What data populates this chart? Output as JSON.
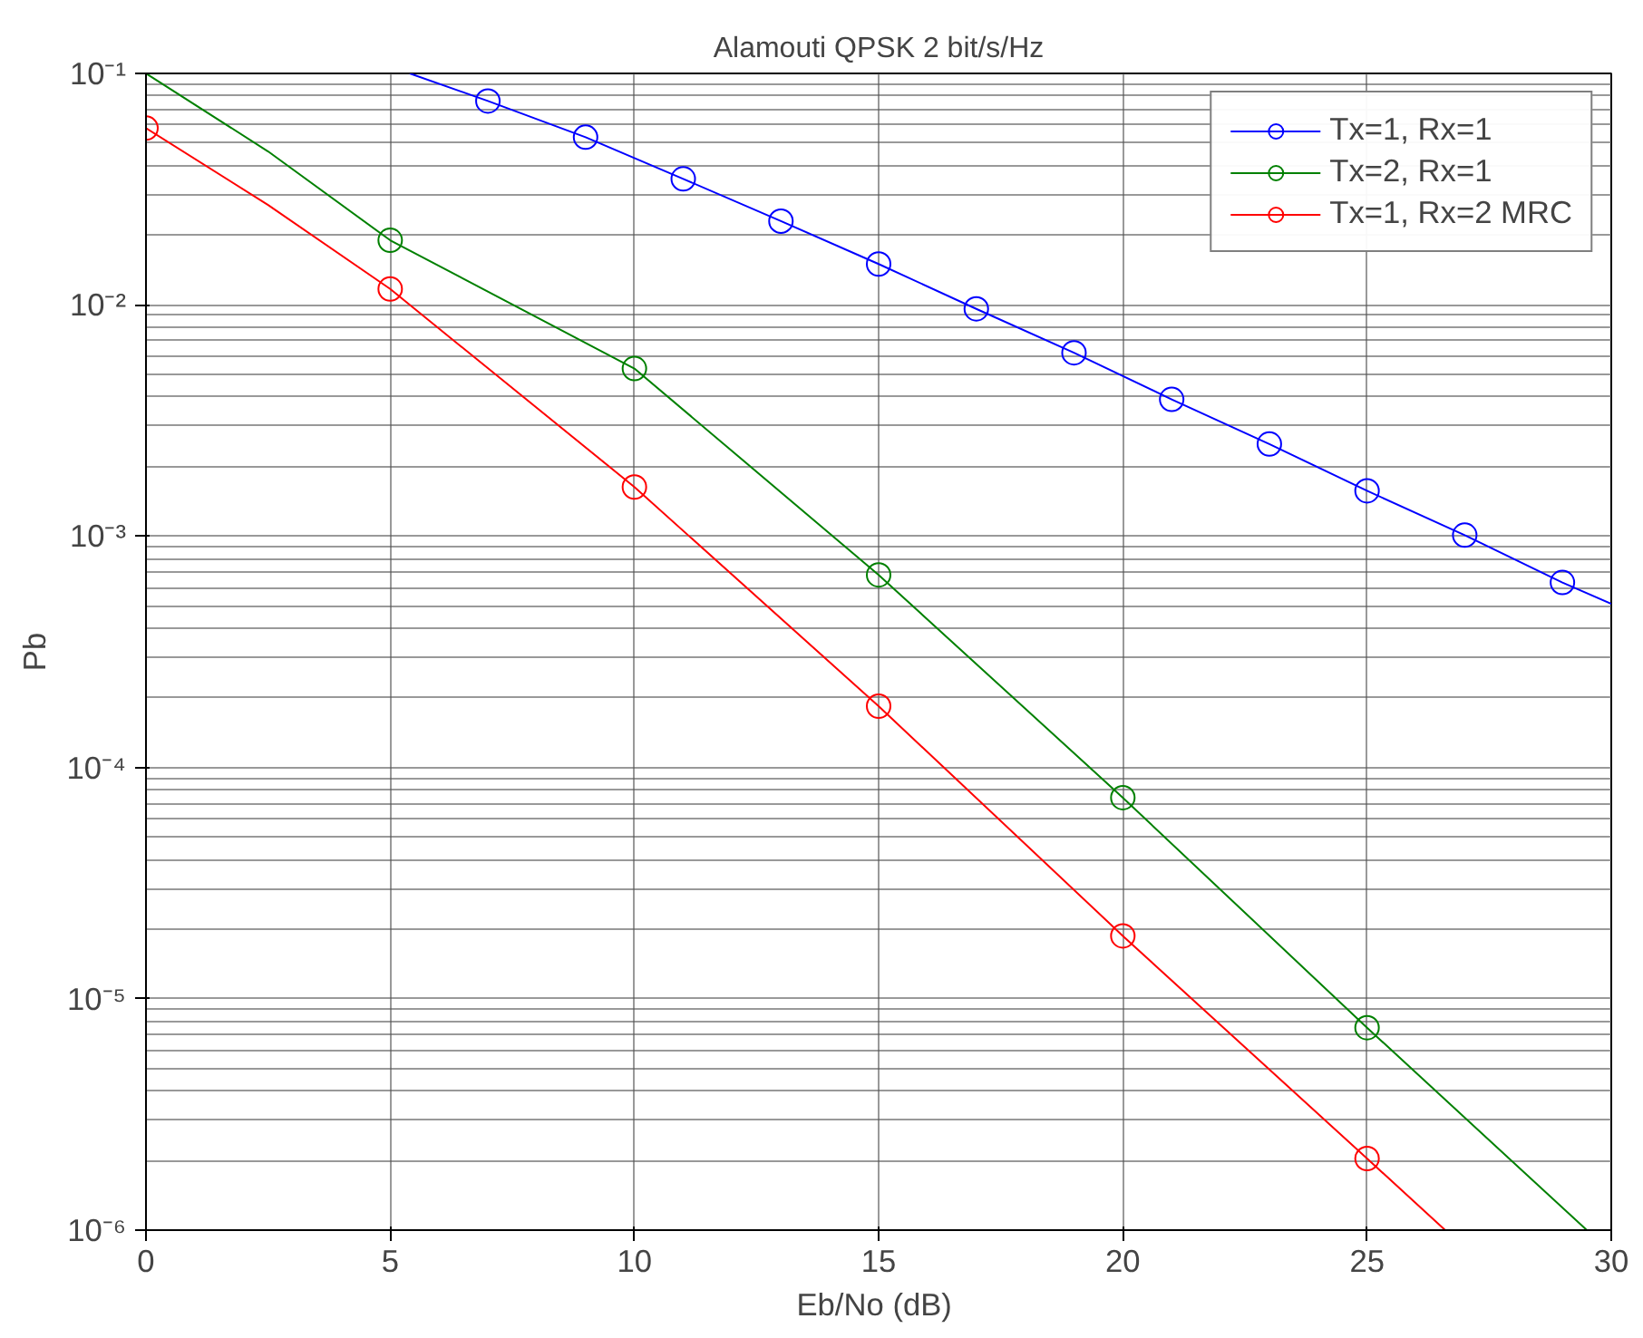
{
  "chart_data": {
    "type": "line",
    "title": "Alamouti QPSK 2 bit/s/Hz",
    "xlabel": "Eb/No  (dB)",
    "ylabel": "Pb",
    "log": "y",
    "grid": true,
    "legend": "top right",
    "xlim": [
      0,
      30
    ],
    "xticks": [
      0,
      5,
      10,
      15,
      20,
      25,
      30
    ],
    "ylim": [
      1e-06,
      0.1
    ],
    "yticks": [
      {
        "value": 1e-06,
        "label": "10⁻⁶"
      },
      {
        "value": 1e-05,
        "label": "10⁻⁵"
      },
      {
        "value": 0.0001,
        "label": "10⁻⁴"
      },
      {
        "value": 0.001,
        "label": "10⁻³"
      },
      {
        "value": 0.01,
        "label": "10⁻²"
      },
      {
        "value": 0.1,
        "label": "10⁻¹"
      }
    ],
    "series": [
      {
        "name": "Tx=1, Rx=1",
        "color": "#0000ff",
        "marker": "none",
        "x": [
          5.4,
          7,
          9,
          11,
          13,
          15,
          17,
          19,
          21,
          23,
          25,
          27,
          29,
          30
        ],
        "values": [
          0.1,
          0.076,
          0.053,
          0.035,
          0.023,
          0.015,
          0.0096,
          0.0062,
          0.0039,
          0.0025,
          0.00157,
          0.00101,
          0.00063,
          0.00051
        ]
      },
      {
        "name": "Tx=2, Rx=1",
        "color": "#008000",
        "marker": "none",
        "x": [
          0,
          2.5,
          5,
          10,
          15,
          20,
          25,
          29.5
        ],
        "values": [
          0.1,
          0.046,
          0.019,
          0.0053,
          0.00068,
          7.4e-05,
          7.5e-06,
          1e-06
        ]
      },
      {
        "name": "Tx=1, Rx=2 MRC",
        "color": "#ff0000",
        "marker": "none",
        "x": [
          0,
          2.5,
          5,
          10,
          15,
          20,
          25,
          26.6
        ],
        "values": [
          0.058,
          0.027,
          0.0117,
          0.00163,
          0.000184,
          1.87e-05,
          2.04e-06,
          1e-06
        ]
      },
      {
        "type": "scatter",
        "color": "#0000ff",
        "marker": "circle",
        "x": [
          7,
          9,
          11,
          13,
          15,
          17,
          19,
          21,
          23,
          25,
          27,
          29
        ],
        "values": [
          0.076,
          0.053,
          0.035,
          0.023,
          0.015,
          0.0096,
          0.0062,
          0.0039,
          0.0025,
          0.00157,
          0.00101,
          0.00063
        ]
      },
      {
        "type": "scatter",
        "color": "#008000",
        "marker": "circle",
        "x": [
          5,
          10,
          15,
          20,
          25
        ],
        "values": [
          0.019,
          0.0053,
          0.00068,
          7.4e-05,
          7.5e-06
        ]
      },
      {
        "type": "scatter",
        "color": "#ff0000",
        "marker": "circle",
        "x": [
          0,
          5,
          10,
          15,
          20,
          25
        ],
        "values": [
          0.058,
          0.0117,
          0.00163,
          0.000184,
          1.87e-05,
          2.04e-06
        ]
      }
    ]
  }
}
